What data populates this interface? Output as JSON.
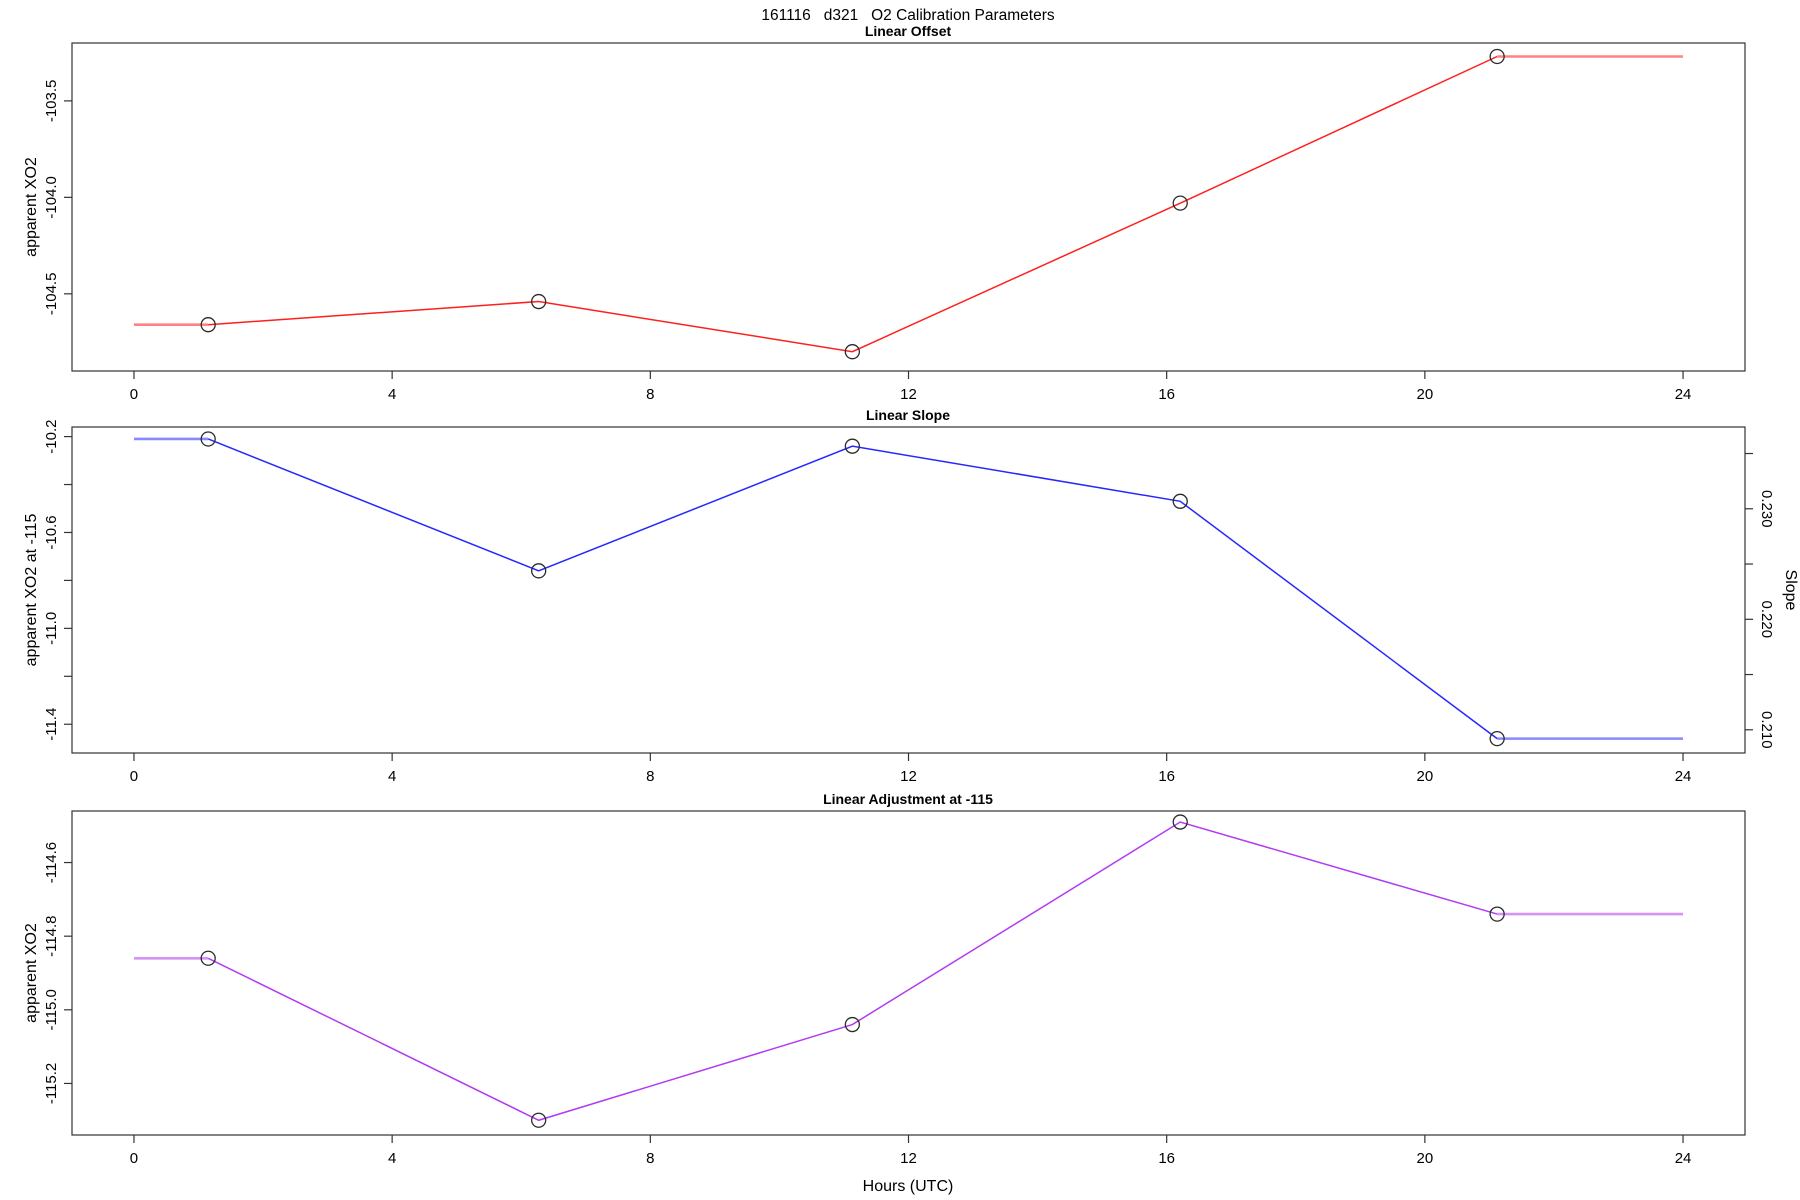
{
  "title": "161116   d321   O2 Calibration Parameters",
  "xlabel": "Hours (UTC)",
  "chart_data": [
    {
      "type": "line",
      "title": "Linear Offset",
      "ylabel": "apparent XO2",
      "series_color": "#ff1f1f",
      "marker": "open-circle",
      "x": [
        1.15,
        6.27,
        11.13,
        16.21,
        21.12
      ],
      "values": [
        -104.66,
        -104.54,
        -104.8,
        -104.03,
        -103.27
      ],
      "extend_hours": [
        0,
        24
      ],
      "xlim": [
        -0.96,
        24.96
      ],
      "ylim": [
        -104.9,
        -103.2
      ],
      "grid": false,
      "xticks": [
        {
          "v": 0,
          "label": "0"
        },
        {
          "v": 4,
          "label": "4"
        },
        {
          "v": 8,
          "label": "8"
        },
        {
          "v": 12,
          "label": "12"
        },
        {
          "v": 16,
          "label": "16"
        },
        {
          "v": 20,
          "label": "20"
        },
        {
          "v": 24,
          "label": "24"
        }
      ],
      "yticks": [
        {
          "v": -103.5,
          "label": "-103.5"
        },
        {
          "v": -104.0,
          "label": "-104.0"
        },
        {
          "v": -104.5,
          "label": "-104.5"
        }
      ]
    },
    {
      "type": "line",
      "title": "Linear Slope",
      "ylabel": "apparent XO2 at -115",
      "ylabel_right": "Slope",
      "series_color": "#2727ff",
      "marker": "open-circle",
      "x": [
        1.15,
        6.27,
        11.13,
        16.21,
        21.12
      ],
      "values": [
        -10.21,
        -10.76,
        -10.24,
        -10.47,
        -11.46
      ],
      "values_right_scale": [
        0.2363,
        0.2244,
        0.2357,
        0.2307,
        0.2093
      ],
      "extend_hours": [
        0,
        24
      ],
      "xlim": [
        -0.96,
        24.96
      ],
      "ylim": [
        -11.52,
        -10.16
      ],
      "ylim_right": [
        0.2079,
        0.2374
      ],
      "grid": false,
      "xticks": [
        {
          "v": 0,
          "label": "0"
        },
        {
          "v": 4,
          "label": "4"
        },
        {
          "v": 8,
          "label": "8"
        },
        {
          "v": 12,
          "label": "12"
        },
        {
          "v": 16,
          "label": "16"
        },
        {
          "v": 20,
          "label": "20"
        },
        {
          "v": 24,
          "label": "24"
        }
      ],
      "yticks": [
        {
          "v": -10.2,
          "label": "-10.2"
        },
        {
          "v": -10.4,
          "label": ""
        },
        {
          "v": -10.6,
          "label": "-10.6"
        },
        {
          "v": -10.8,
          "label": ""
        },
        {
          "v": -11.0,
          "label": "-11.0"
        },
        {
          "v": -11.2,
          "label": ""
        },
        {
          "v": -11.4,
          "label": "-11.4"
        }
      ],
      "yticks_right": [
        {
          "v": 0.21,
          "label": "0.210"
        },
        {
          "v": 0.215,
          "label": ""
        },
        {
          "v": 0.22,
          "label": "0.220"
        },
        {
          "v": 0.225,
          "label": ""
        },
        {
          "v": 0.23,
          "label": "0.230"
        },
        {
          "v": 0.235,
          "label": ""
        }
      ]
    },
    {
      "type": "line",
      "title": "Linear Adjustment at -115",
      "ylabel": "apparent XO2",
      "series_color": "#b23bf2",
      "marker": "open-circle",
      "x": [
        1.15,
        6.27,
        11.13,
        16.21,
        21.12
      ],
      "values": [
        -114.86,
        -115.3,
        -115.04,
        -114.49,
        -114.74
      ],
      "extend_hours": [
        0,
        24
      ],
      "xlim": [
        -0.96,
        24.96
      ],
      "ylim": [
        -115.34,
        -114.46
      ],
      "grid": false,
      "xticks": [
        {
          "v": 0,
          "label": "0"
        },
        {
          "v": 4,
          "label": "4"
        },
        {
          "v": 8,
          "label": "8"
        },
        {
          "v": 12,
          "label": "12"
        },
        {
          "v": 16,
          "label": "16"
        },
        {
          "v": 20,
          "label": "20"
        },
        {
          "v": 24,
          "label": "24"
        }
      ],
      "yticks": [
        {
          "v": -114.6,
          "label": "-114.6"
        },
        {
          "v": -114.8,
          "label": "-114.8"
        },
        {
          "v": -115.0,
          "label": "-115.0"
        },
        {
          "v": -115.2,
          "label": "-115.2"
        }
      ]
    }
  ]
}
